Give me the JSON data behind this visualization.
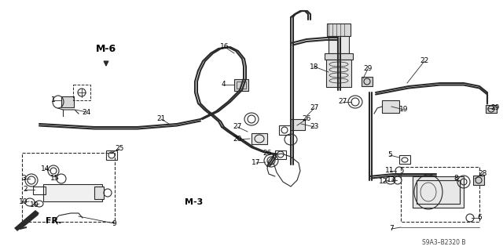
{
  "bg_color": "#ffffff",
  "line_color": "#2a2a2a",
  "text_color": "#000000",
  "fig_width": 6.4,
  "fig_height": 3.19,
  "dpi": 100
}
